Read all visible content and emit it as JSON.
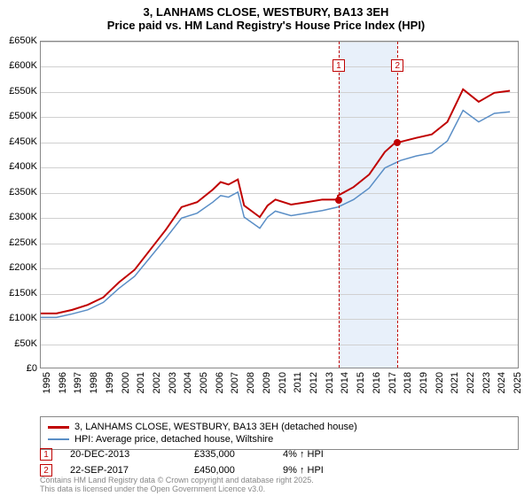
{
  "title_line1": "3, LANHAMS CLOSE, WESTBURY, BA13 3EH",
  "title_line2": "Price paid vs. HM Land Registry's House Price Index (HPI)",
  "chart": {
    "type": "line",
    "x_years": [
      1995,
      1996,
      1997,
      1998,
      1999,
      2000,
      2001,
      2002,
      2003,
      2004,
      2005,
      2006,
      2007,
      2008,
      2009,
      2010,
      2011,
      2012,
      2013,
      2014,
      2015,
      2016,
      2017,
      2018,
      2019,
      2020,
      2021,
      2022,
      2023,
      2024,
      2025
    ],
    "xlim": [
      1995,
      2025.5
    ],
    "ylim": [
      0,
      650000
    ],
    "ytick_step": 50000,
    "ytick_labels": [
      "£0",
      "£50K",
      "£100K",
      "£150K",
      "£200K",
      "£250K",
      "£300K",
      "£350K",
      "£400K",
      "£450K",
      "£500K",
      "£550K",
      "£600K",
      "£650K"
    ],
    "grid_color": "#d0d0d0",
    "background_color": "#ffffff",
    "highlight_band": {
      "x_start": 2013.97,
      "x_end": 2017.72,
      "color": "#e8f0fa"
    },
    "series_red": {
      "color": "#c00000",
      "line_width": 2,
      "data_x": [
        1995,
        1996,
        1997,
        1998,
        1999,
        2000,
        2001,
        2002,
        2003,
        2004,
        2005,
        2006,
        2006.5,
        2007,
        2007.6,
        2008,
        2009,
        2009.5,
        2010,
        2011,
        2012,
        2013,
        2013.97,
        2014,
        2015,
        2016,
        2017,
        2017.72,
        2018,
        2019,
        2020,
        2021,
        2022,
        2023,
        2024,
        2025
      ],
      "data_y": [
        108000,
        108000,
        115000,
        125000,
        140000,
        170000,
        195000,
        235000,
        275000,
        320000,
        330000,
        355000,
        370000,
        365000,
        375000,
        323000,
        300000,
        323000,
        335000,
        325000,
        330000,
        335000,
        335000,
        343000,
        360000,
        385000,
        430000,
        450000,
        450000,
        458000,
        465000,
        490000,
        555000,
        530000,
        548000,
        552000
      ]
    },
    "series_blue": {
      "color": "#5a8ec6",
      "line_width": 1.5,
      "data_x": [
        1995,
        1996,
        1997,
        1998,
        1999,
        2000,
        2001,
        2002,
        2003,
        2004,
        2005,
        2006,
        2006.5,
        2007,
        2007.6,
        2008,
        2009,
        2009.5,
        2010,
        2011,
        2012,
        2013,
        2014,
        2015,
        2016,
        2017,
        2018,
        2019,
        2020,
        2021,
        2022,
        2023,
        2024,
        2025
      ],
      "data_y": [
        100000,
        100000,
        107000,
        115000,
        130000,
        158000,
        182000,
        220000,
        258000,
        298000,
        308000,
        330000,
        343000,
        340000,
        350000,
        300000,
        278000,
        300000,
        312000,
        303000,
        308000,
        313000,
        320000,
        335000,
        358000,
        398000,
        413000,
        422000,
        428000,
        452000,
        513000,
        490000,
        507000,
        510000
      ]
    },
    "sale_markers": [
      {
        "label": "1",
        "x": 2013.97,
        "y": 335000
      },
      {
        "label": "2",
        "x": 2017.72,
        "y": 450000
      }
    ],
    "marker_box_top_offset": 20,
    "dash_color": "#c00000"
  },
  "legend": {
    "items": [
      {
        "swatch_color": "#c00000",
        "swatch_height": 3,
        "label": "3, LANHAMS CLOSE, WESTBURY, BA13 3EH (detached house)"
      },
      {
        "swatch_color": "#5a8ec6",
        "swatch_height": 2,
        "label": "HPI: Average price, detached house, Wiltshire"
      }
    ]
  },
  "sales": [
    {
      "label": "1",
      "date": "20-DEC-2013",
      "price": "£335,000",
      "pct": "4% ↑ HPI"
    },
    {
      "label": "2",
      "date": "22-SEP-2017",
      "price": "£450,000",
      "pct": "9% ↑ HPI"
    }
  ],
  "footer_line1": "Contains HM Land Registry data © Crown copyright and database right 2025.",
  "footer_line2": "This data is licensed under the Open Government Licence v3.0."
}
